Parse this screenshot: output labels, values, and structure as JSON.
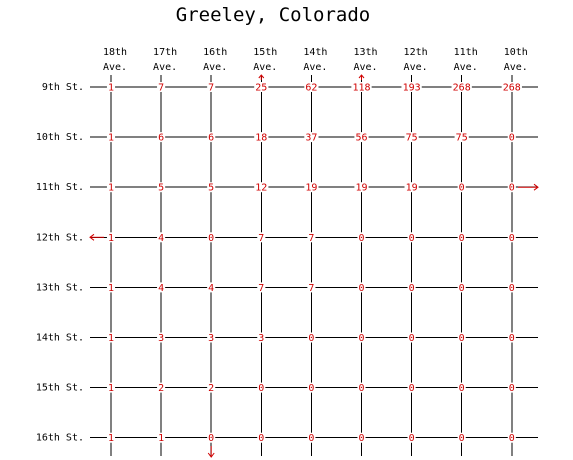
{
  "title": "Greeley, Colorado",
  "avenues": [
    {
      "name": "18th",
      "suffix": "Ave."
    },
    {
      "name": "17th",
      "suffix": "Ave."
    },
    {
      "name": "16th",
      "suffix": "Ave."
    },
    {
      "name": "15th",
      "suffix": "Ave."
    },
    {
      "name": "14th",
      "suffix": "Ave."
    },
    {
      "name": "13th",
      "suffix": "Ave."
    },
    {
      "name": "12th",
      "suffix": "Ave."
    },
    {
      "name": "11th",
      "suffix": "Ave."
    },
    {
      "name": "10th",
      "suffix": "Ave."
    }
  ],
  "streets": [
    "9th St.",
    "10th St.",
    "11th St.",
    "12th St.",
    "13th St.",
    "14th St.",
    "15th St.",
    "16th St."
  ],
  "counts": [
    [
      1,
      7,
      7,
      25,
      62,
      118,
      193,
      268,
      268
    ],
    [
      1,
      6,
      6,
      18,
      37,
      56,
      75,
      75,
      0
    ],
    [
      1,
      5,
      5,
      12,
      19,
      19,
      19,
      0,
      0
    ],
    [
      1,
      4,
      0,
      7,
      7,
      0,
      0,
      0,
      0
    ],
    [
      1,
      4,
      4,
      7,
      7,
      0,
      0,
      0,
      0
    ],
    [
      1,
      3,
      3,
      3,
      0,
      0,
      0,
      0,
      0
    ],
    [
      1,
      2,
      2,
      0,
      0,
      0,
      0,
      0,
      0
    ],
    [
      1,
      1,
      0,
      0,
      0,
      0,
      0,
      0,
      0
    ]
  ],
  "arrows": [
    {
      "kind": "up",
      "col": 3,
      "row": 0
    },
    {
      "kind": "up",
      "col": 5,
      "row": 0
    },
    {
      "kind": "right",
      "row": 2
    },
    {
      "kind": "left",
      "row": 3
    },
    {
      "kind": "down",
      "col": 2,
      "row": 7
    }
  ],
  "colors": {
    "lines": "#000000",
    "numbers": "#d00000",
    "background": "#ffffff"
  }
}
